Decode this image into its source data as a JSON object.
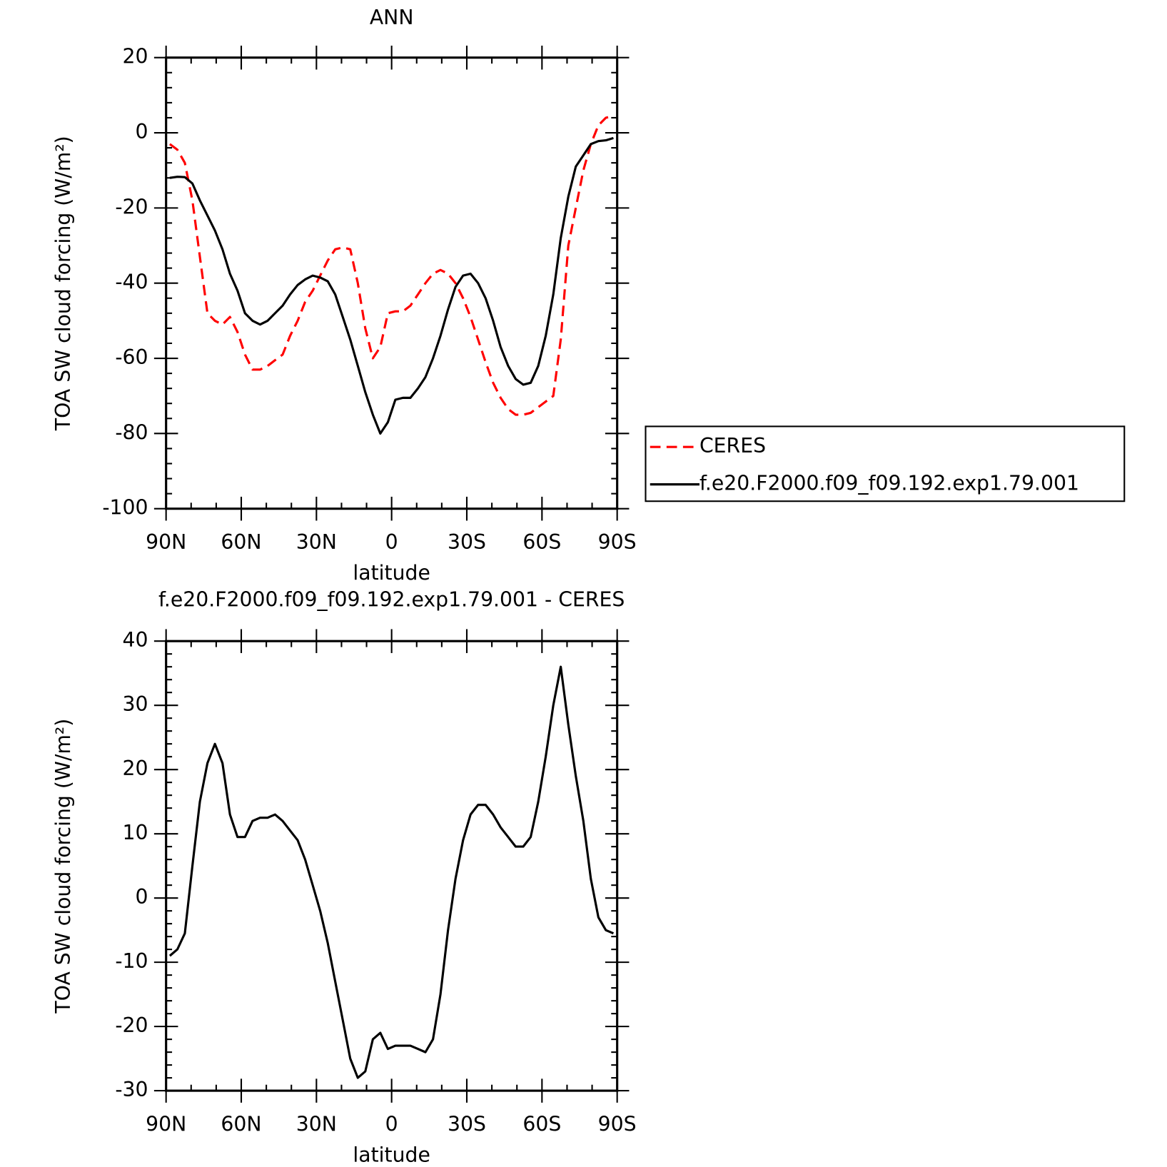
{
  "chart_data": [
    {
      "type": "line",
      "title": "ANN",
      "x_label": "latitude",
      "y_label": "TOA SW cloud forcing (W/m²)",
      "xlim": [
        90,
        -90
      ],
      "xticks": [
        {
          "value": 90,
          "label": "90N"
        },
        {
          "value": 60,
          "label": "60N"
        },
        {
          "value": 30,
          "label": "30N"
        },
        0,
        {
          "value": -30,
          "label": "30S"
        },
        {
          "value": -60,
          "label": "60S"
        },
        {
          "value": -90,
          "label": "90S"
        }
      ],
      "ylim": [
        -100,
        20
      ],
      "yticks": [
        -100,
        -80,
        -60,
        -40,
        -20,
        0,
        20
      ],
      "legend": "right",
      "x": [
        88.5,
        85.5,
        82.5,
        79.5,
        76.5,
        73.5,
        70.5,
        67.5,
        64.5,
        61.5,
        58.5,
        55.5,
        52.5,
        49.5,
        46.5,
        43.5,
        40.5,
        37.5,
        34.5,
        31.5,
        28.5,
        25.5,
        22.5,
        19.5,
        16.5,
        13.5,
        10.5,
        7.5,
        4.5,
        1.5,
        -1.5,
        -4.5,
        -7.5,
        -10.5,
        -13.5,
        -16.5,
        -19.5,
        -22.5,
        -25.5,
        -28.5,
        -31.5,
        -34.5,
        -37.5,
        -40.5,
        -43.5,
        -46.5,
        -49.5,
        -52.5,
        -55.5,
        -58.5,
        -61.5,
        -64.5,
        -67.5,
        -70.5,
        -73.5,
        -76.5,
        -79.5,
        -82.5,
        -85.5,
        -88.5
      ],
      "series": [
        {
          "name": "CERES",
          "color": "#ff0000",
          "dashed": true,
          "values": [
            -3,
            -4.5,
            -8,
            -18,
            -33,
            -48,
            -50,
            -51,
            -49,
            -53,
            -59,
            -63,
            -63,
            -62,
            -60.5,
            -59,
            -54,
            -50,
            -45,
            -42,
            -38,
            -34,
            -31,
            -30.5,
            -31,
            -40,
            -52,
            -60,
            -57,
            -48,
            -47.5,
            -47.5,
            -46,
            -43,
            -40,
            -37.5,
            -36.5,
            -37.5,
            -40,
            -44,
            -49,
            -55,
            -61,
            -66.5,
            -70.5,
            -73.5,
            -75,
            -75,
            -74.5,
            -73,
            -71.5,
            -70,
            -55,
            -30,
            -20,
            -10,
            -3,
            2,
            4,
            4.5
          ]
        },
        {
          "name": "f.e20.F2000.f09_f09.192.exp1.79.001",
          "color": "#000000",
          "dashed": false,
          "values": [
            -12,
            -11.7,
            -11.8,
            -13.5,
            -18,
            -22,
            -26,
            -31,
            -37.5,
            -42,
            -48,
            -50,
            -51,
            -50,
            -48,
            -46,
            -43,
            -40.5,
            -39,
            -38,
            -38.5,
            -39.5,
            -43,
            -49,
            -55,
            -62,
            -69,
            -75,
            -80,
            -77,
            -71,
            -70.5,
            -70.5,
            -68,
            -65,
            -60,
            -54,
            -47,
            -41,
            -38,
            -37.5,
            -40,
            -44,
            -50,
            -57,
            -62,
            -65.5,
            -67,
            -66.5,
            -62,
            -54,
            -43,
            -28,
            -17,
            -9,
            -6,
            -3,
            -2.2,
            -2,
            -1.4
          ]
        }
      ]
    },
    {
      "type": "line",
      "title": "f.e20.F2000.f09_f09.192.exp1.79.001 - CERES",
      "x_label": "latitude",
      "y_label": "TOA SW cloud forcing (W/m²)",
      "xlim": [
        90,
        -90
      ],
      "xticks": [
        {
          "value": 90,
          "label": "90N"
        },
        {
          "value": 60,
          "label": "60N"
        },
        {
          "value": 30,
          "label": "30N"
        },
        0,
        {
          "value": -30,
          "label": "30S"
        },
        {
          "value": -60,
          "label": "60S"
        },
        {
          "value": -90,
          "label": "90S"
        }
      ],
      "ylim": [
        -30,
        40
      ],
      "yticks": [
        -30,
        -20,
        -10,
        0,
        10,
        20,
        30,
        40
      ],
      "x": [
        88.5,
        85.5,
        82.5,
        79.5,
        76.5,
        73.5,
        70.5,
        67.5,
        64.5,
        61.5,
        58.5,
        55.5,
        52.5,
        49.5,
        46.5,
        43.5,
        40.5,
        37.5,
        34.5,
        31.5,
        28.5,
        25.5,
        22.5,
        19.5,
        16.5,
        13.5,
        10.5,
        7.5,
        4.5,
        1.5,
        -1.5,
        -4.5,
        -7.5,
        -10.5,
        -13.5,
        -16.5,
        -19.5,
        -22.5,
        -25.5,
        -28.5,
        -31.5,
        -34.5,
        -37.5,
        -40.5,
        -43.5,
        -46.5,
        -49.5,
        -52.5,
        -55.5,
        -58.5,
        -61.5,
        -64.5,
        -67.5,
        -70.5,
        -73.5,
        -76.5,
        -79.5,
        -82.5,
        -85.5,
        -88.5
      ],
      "series": [
        {
          "color": "#000000",
          "dashed": false,
          "values": [
            -9,
            -8,
            -5.5,
            5,
            15,
            21,
            24,
            21,
            13,
            9.5,
            9.5,
            12,
            12.5,
            12.5,
            13,
            12,
            10.5,
            9,
            6,
            2,
            -2,
            -7,
            -13,
            -19,
            -25,
            -28,
            -27,
            -22,
            -21,
            -23.5,
            -23,
            -23,
            -23,
            -23.5,
            -24,
            -22,
            -15,
            -5,
            3,
            9,
            13,
            14.5,
            14.5,
            13,
            11,
            9.5,
            8,
            8,
            9.5,
            15,
            22,
            30,
            36,
            27,
            19,
            12,
            3,
            -3,
            -5,
            -5.5
          ]
        }
      ]
    }
  ]
}
